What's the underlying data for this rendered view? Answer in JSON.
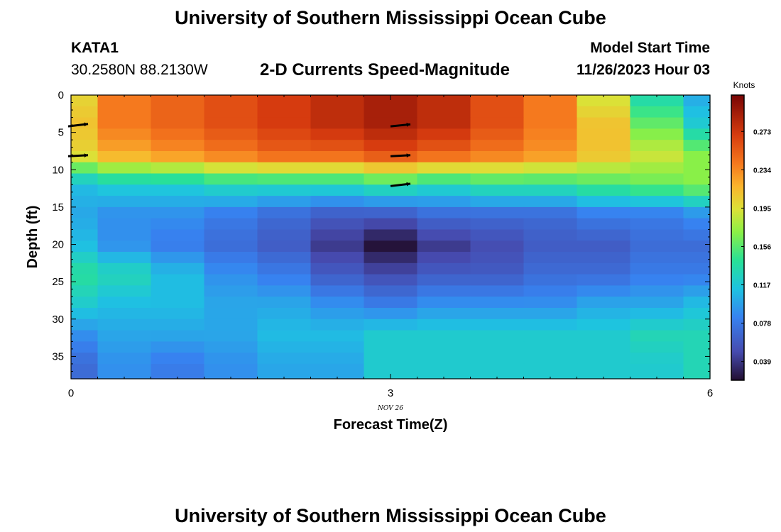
{
  "page": {
    "title": "University of Southern Mississippi Ocean Cube",
    "footer_title": "University of Southern Mississippi Ocean Cube"
  },
  "station": {
    "name": "KATA1",
    "coords": "30.2580N  88.2130W"
  },
  "model": {
    "label": "Model Start Time",
    "time": "11/26/2023 Hour 03"
  },
  "chart_data": {
    "type": "heatmap",
    "title": "2-D Currents Speed-Magnitude",
    "xlabel": "Forecast Time(Z)",
    "ylabel": "Depth (ft)",
    "date_label": "NOV 26",
    "xlim": [
      0,
      6
    ],
    "ylim": [
      38,
      0
    ],
    "x_ticks": [
      0,
      3,
      6
    ],
    "y_ticks": [
      0,
      5,
      10,
      15,
      20,
      25,
      30,
      35
    ],
    "colorbar": {
      "label": "Knots",
      "range": [
        0.02,
        0.31
      ],
      "ticks": [
        "0.039",
        "0.078",
        "0.117",
        "0.156",
        "0.195",
        "0.234",
        "0.273"
      ],
      "tick_values": [
        0.039,
        0.078,
        0.117,
        0.156,
        0.195,
        0.234,
        0.273
      ]
    },
    "columns_x": [
      0.0,
      0.5,
      1.0,
      1.5,
      2.0,
      2.5,
      3.0,
      3.5,
      4.0,
      4.5,
      5.0,
      5.5,
      6.0
    ],
    "depths_ft": [
      0,
      4,
      8,
      12,
      16,
      20,
      24,
      28,
      32,
      36
    ],
    "values": [
      [
        0.2,
        0.24,
        0.25,
        0.26,
        0.27,
        0.28,
        0.29,
        0.28,
        0.26,
        0.24,
        0.19,
        0.13,
        0.1
      ],
      [
        0.21,
        0.24,
        0.25,
        0.26,
        0.27,
        0.28,
        0.29,
        0.28,
        0.26,
        0.24,
        0.21,
        0.16,
        0.12
      ],
      [
        0.2,
        0.22,
        0.23,
        0.24,
        0.25,
        0.25,
        0.26,
        0.25,
        0.24,
        0.23,
        0.21,
        0.19,
        0.17
      ],
      [
        0.11,
        0.12,
        0.12,
        0.13,
        0.13,
        0.13,
        0.14,
        0.13,
        0.14,
        0.14,
        0.15,
        0.16,
        0.17
      ],
      [
        0.1,
        0.09,
        0.09,
        0.08,
        0.07,
        0.06,
        0.06,
        0.07,
        0.07,
        0.07,
        0.08,
        0.08,
        0.09
      ],
      [
        0.11,
        0.09,
        0.08,
        0.07,
        0.06,
        0.04,
        0.02,
        0.04,
        0.05,
        0.06,
        0.06,
        0.07,
        0.07
      ],
      [
        0.14,
        0.13,
        0.11,
        0.09,
        0.08,
        0.06,
        0.05,
        0.06,
        0.06,
        0.07,
        0.07,
        0.08,
        0.08
      ],
      [
        0.12,
        0.11,
        0.11,
        0.1,
        0.1,
        0.09,
        0.08,
        0.09,
        0.09,
        0.09,
        0.1,
        0.1,
        0.11
      ],
      [
        0.09,
        0.1,
        0.1,
        0.1,
        0.11,
        0.11,
        0.12,
        0.12,
        0.12,
        0.12,
        0.12,
        0.13,
        0.13
      ],
      [
        0.07,
        0.09,
        0.08,
        0.09,
        0.1,
        0.1,
        0.12,
        0.12,
        0.12,
        0.12,
        0.12,
        0.12,
        0.13
      ]
    ],
    "vectors": [
      {
        "x": 0.0,
        "depth": 4,
        "u": 1.0,
        "v": 0.12
      },
      {
        "x": 0.0,
        "depth": 8,
        "u": 1.0,
        "v": 0.05
      },
      {
        "x": 3.0,
        "depth": 4,
        "u": 1.0,
        "v": 0.1
      },
      {
        "x": 3.0,
        "depth": 8,
        "u": 1.0,
        "v": 0.05
      },
      {
        "x": 3.0,
        "depth": 12,
        "u": 1.0,
        "v": 0.12
      }
    ]
  }
}
